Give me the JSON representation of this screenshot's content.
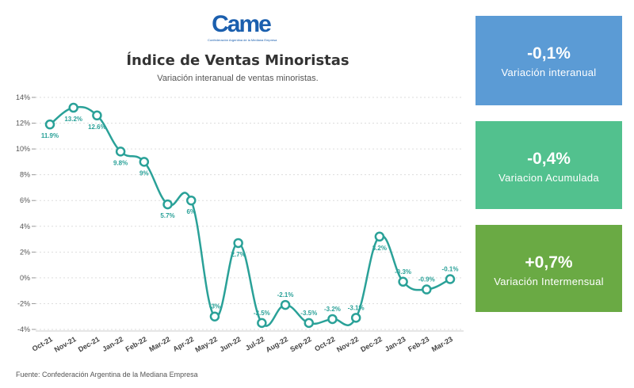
{
  "logo": {
    "text": "Came",
    "subtitle": "Confederación Argentina de la Mediana Empresa"
  },
  "source": "Fuente: Confederación Argentina de la Mediana Empresa",
  "cards": [
    {
      "value": "-0,1%",
      "label": "Variación interanual",
      "color": "#5b9bd5"
    },
    {
      "value": "-0,4%",
      "label": "Variacion Acumulada",
      "color": "#52c18e"
    },
    {
      "value": "+0,7%",
      "label": "Variación Intermensual",
      "color": "#6aaa44"
    }
  ],
  "chart_data": {
    "type": "line",
    "title": "Índice de Ventas Minoristas",
    "subtitle": "Variación interanual de ventas minoristas.",
    "categories": [
      "Oct-21",
      "Nov-21",
      "Dec-21",
      "Jan-22",
      "Feb-22",
      "Mar-22",
      "Apr-22",
      "May-22",
      "Jun-22",
      "Jul-22",
      "Aug-22",
      "Sep-22",
      "Oct-22",
      "Nov-22",
      "Dec-22",
      "Jan-23",
      "Feb-23",
      "Mar-23"
    ],
    "values": [
      11.9,
      13.2,
      12.6,
      9.8,
      9,
      5.7,
      6,
      -3,
      2.7,
      -3.5,
      -2.1,
      -3.5,
      -3.2,
      -3.1,
      3.2,
      -0.3,
      -0.9,
      -0.1
    ],
    "labels": [
      "11.9%",
      "13.2%",
      "12.6%",
      "9.8%",
      "9%",
      "5.7%",
      "6%",
      "-3%",
      "2.7%",
      "-3.5%",
      "-2.1%",
      "-3.5%",
      "-3.2%",
      "-3.1%",
      "3.2%",
      "-0.3%",
      "-0.9%",
      "-0.1%"
    ],
    "yticks": [
      "14%",
      "12%",
      "10%",
      "8%",
      "6%",
      "4%",
      "2%",
      "0%",
      "-2%",
      "-4%"
    ],
    "ytick_values": [
      14,
      12,
      10,
      8,
      6,
      4,
      2,
      0,
      -2,
      -4
    ],
    "ylim": [
      -4,
      14
    ],
    "color": "#2aa198",
    "grid": true
  }
}
